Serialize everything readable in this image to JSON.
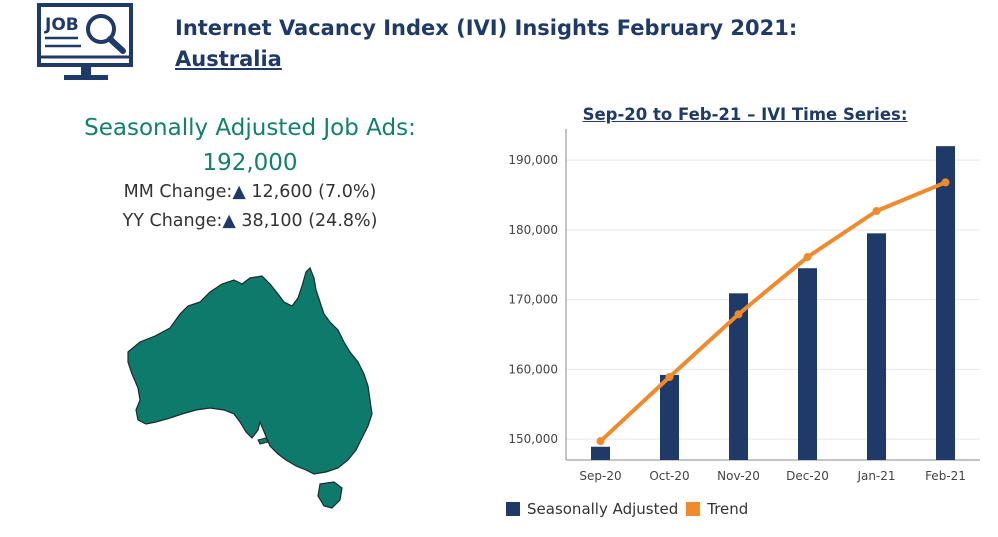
{
  "header": {
    "title_line1": "Internet Vacancy Index (IVI) Insights February 2021:",
    "title_line2": "Australia",
    "logo_text": "JOB"
  },
  "summary": {
    "label": "Seasonally Adjusted Job Ads:",
    "value": "192,000",
    "mm_label": "MM Change:",
    "mm_value": "12,600 (7.0%)",
    "yy_label": "YY Change:",
    "yy_value": "38,100 (24.8%)",
    "arrow": "▲"
  },
  "colors": {
    "navy": "#1f3a68",
    "teal": "#0e7a6c",
    "orange": "#f08a2c"
  },
  "chart_data": {
    "type": "bar",
    "title": "Sep-20 to Feb-21 – IVI Time Series:",
    "categories": [
      "Sep-20",
      "Oct-20",
      "Nov-20",
      "Dec-20",
      "Jan-21",
      "Feb-21"
    ],
    "series": [
      {
        "name": "Seasonally Adjusted",
        "type": "bar",
        "values": [
          148900,
          159200,
          170900,
          174500,
          179500,
          192000
        ]
      },
      {
        "name": "Trend",
        "type": "line",
        "values": [
          149700,
          158900,
          167900,
          176100,
          182700,
          186800
        ]
      }
    ],
    "yticks": [
      150000,
      160000,
      170000,
      180000,
      190000
    ],
    "ytick_labels": [
      "150,000",
      "160,000",
      "170,000",
      "180,000",
      "190,000"
    ],
    "ylim": [
      147000,
      193600
    ],
    "grid": true,
    "legend": "bottom"
  }
}
